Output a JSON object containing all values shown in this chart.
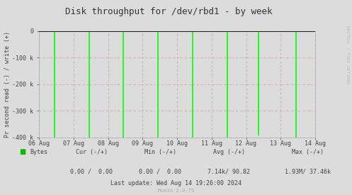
{
  "title": "Disk throughput for /dev/rbd1 - by week",
  "ylabel": "Pr second read (-) / write (+)",
  "background_color": "#dcdcdc",
  "plot_bg_color": "#dcdcdc",
  "ylim": [
    -400000,
    0
  ],
  "xtick_positions": [
    0,
    1,
    2,
    3,
    4,
    5,
    6,
    7,
    8
  ],
  "xtick_labels": [
    "06 Aug",
    "07 Aug",
    "08 Aug",
    "09 Aug",
    "10 Aug",
    "11 Aug",
    "12 Aug",
    "13 Aug",
    "14 Aug"
  ],
  "spike_x": [
    0.45,
    1.45,
    2.45,
    3.45,
    4.45,
    5.45,
    6.35,
    7.45
  ],
  "spike_bottom": [
    -400000,
    -400000,
    -400000,
    -400000,
    -400000,
    -400000,
    -390000,
    -400000
  ],
  "line_color": "#00ff00",
  "zero_line_color": "#000000",
  "grid_v_color": "#aaaaaa",
  "grid_h_color": "#cc9999",
  "right_label": "RRDTOOL / TOBI OETIKER",
  "legend_label": "Bytes",
  "legend_color": "#00bb00",
  "footer_cur": "Cur (-/+)",
  "footer_cur_val": "0.00 /  0.00",
  "footer_min": "Min (-/+)",
  "footer_min_val": "0.00 /  0.00",
  "footer_avg": "Avg (-/+)",
  "footer_avg_val": "7.14k/ 90.82",
  "footer_max": "Max (-/+)",
  "footer_max_val": "1.93M/ 37.46k",
  "footer_last_update": "Last update: Wed Aug 14 19:26:00 2024",
  "footer_munin": "Munin 2.0.75",
  "title_color": "#333333",
  "axis_color": "#444444",
  "tick_color": "#444444",
  "font_size": 6,
  "title_font_size": 9
}
